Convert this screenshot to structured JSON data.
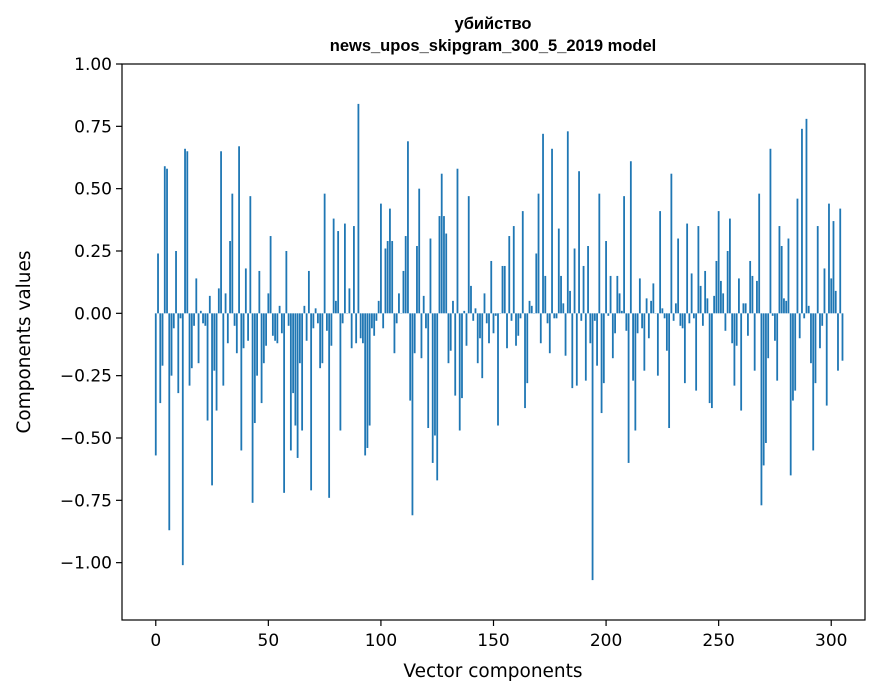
{
  "chart_data": {
    "type": "bar",
    "title": "убийство",
    "subtitle": "news_upos_skipgram_300_5_2019 model",
    "xlabel": "Vector components",
    "ylabel": "Components values",
    "xlim": [
      -15,
      315
    ],
    "ylim": [
      -1.23,
      1.0
    ],
    "xticks": [
      0,
      50,
      100,
      150,
      200,
      250,
      300
    ],
    "xtick_labels": [
      "0",
      "50",
      "100",
      "150",
      "200",
      "250",
      "300"
    ],
    "yticks": [
      1.0,
      0.75,
      0.5,
      0.25,
      0.0,
      -0.25,
      -0.5,
      -0.75,
      -1.0
    ],
    "ytick_labels": [
      "1.00",
      "0.75",
      "0.50",
      "0.25",
      "0.00",
      "−0.25",
      "−0.50",
      "−0.75",
      "−1.00"
    ],
    "grid": false,
    "bar_color": "#1f77b4",
    "values": [
      -0.57,
      0.24,
      -0.36,
      -0.21,
      0.59,
      0.58,
      -0.87,
      -0.25,
      -0.06,
      0.25,
      -0.32,
      -0.02,
      -1.01,
      0.66,
      0.65,
      -0.29,
      -0.22,
      -0.05,
      0.14,
      -0.2,
      0.01,
      -0.04,
      -0.05,
      -0.43,
      0.07,
      -0.69,
      -0.23,
      -0.39,
      0.1,
      0.65,
      -0.29,
      0.08,
      -0.12,
      0.29,
      0.48,
      -0.05,
      -0.16,
      0.67,
      -0.55,
      -0.14,
      0.18,
      -0.11,
      0.47,
      -0.76,
      -0.44,
      -0.25,
      0.17,
      -0.36,
      -0.2,
      -0.13,
      0.08,
      0.31,
      -0.09,
      -0.11,
      -0.12,
      0.03,
      -0.08,
      -0.72,
      0.25,
      -0.05,
      -0.55,
      -0.32,
      -0.45,
      -0.58,
      -0.2,
      -0.47,
      0.03,
      -0.11,
      0.17,
      -0.71,
      -0.06,
      0.02,
      -0.04,
      -0.22,
      -0.2,
      0.48,
      -0.07,
      -0.74,
      -0.13,
      0.38,
      0.05,
      0.33,
      -0.47,
      -0.04,
      0.36,
      0.0,
      0.1,
      -0.14,
      0.35,
      -0.12,
      0.84,
      -0.1,
      -0.12,
      -0.57,
      -0.54,
      -0.45,
      -0.06,
      -0.09,
      -0.03,
      0.05,
      0.44,
      -0.06,
      0.26,
      0.29,
      0.42,
      0.29,
      -0.16,
      -0.04,
      0.08,
      0.0,
      0.17,
      0.31,
      0.69,
      -0.35,
      -0.81,
      -0.16,
      0.27,
      0.5,
      -0.18,
      0.07,
      -0.06,
      -0.46,
      0.3,
      -0.6,
      -0.49,
      -0.67,
      0.39,
      0.56,
      0.39,
      0.32,
      -0.2,
      -0.15,
      0.05,
      -0.33,
      0.58,
      -0.47,
      -0.34,
      0.01,
      -0.13,
      0.47,
      0.11,
      -0.03,
      0.02,
      -0.2,
      -0.1,
      -0.26,
      0.08,
      -0.04,
      -0.12,
      0.21,
      -0.08,
      -0.01,
      -0.45,
      0.0,
      0.19,
      0.19,
      -0.14,
      0.31,
      -0.03,
      0.35,
      -0.13,
      -0.09,
      -0.02,
      0.41,
      -0.38,
      -0.28,
      0.05,
      0.03,
      0.0,
      0.24,
      0.48,
      -0.12,
      0.72,
      0.15,
      -0.04,
      -0.16,
      0.66,
      -0.02,
      -0.02,
      0.34,
      0.15,
      0.04,
      -0.17,
      0.73,
      0.09,
      -0.3,
      0.26,
      -0.29,
      0.57,
      -0.03,
      0.19,
      -0.27,
      0.27,
      -0.12,
      -1.07,
      -0.03,
      -0.21,
      0.48,
      -0.4,
      -0.28,
      0.29,
      -0.01,
      0.15,
      -0.18,
      -0.08,
      0.15,
      0.08,
      0.01,
      0.47,
      -0.07,
      -0.6,
      0.61,
      -0.27,
      -0.47,
      -0.08,
      0.14,
      -0.06,
      -0.23,
      0.06,
      -0.1,
      0.05,
      0.12,
      0.0,
      -0.25,
      0.41,
      0.02,
      -0.02,
      -0.15,
      -0.46,
      0.56,
      -0.03,
      0.04,
      0.3,
      -0.05,
      -0.06,
      -0.28,
      0.36,
      -0.04,
      0.16,
      -0.02,
      -0.31,
      0.35,
      0.11,
      -0.05,
      0.17,
      0.06,
      -0.36,
      -0.38,
      0.07,
      0.21,
      0.41,
      0.13,
      0.08,
      -0.07,
      0.25,
      0.38,
      -0.12,
      -0.29,
      -0.13,
      0.14,
      -0.39,
      0.04,
      0.04,
      -0.09,
      0.21,
      0.15,
      -0.23,
      0.13,
      0.48,
      -0.77,
      -0.61,
      -0.52,
      -0.18,
      0.66,
      -0.01,
      -0.11,
      -0.27,
      0.35,
      0.27,
      0.06,
      0.05,
      0.3,
      -0.65,
      -0.35,
      -0.31,
      0.46,
      -0.1,
      0.74,
      -0.02,
      0.78,
      0.03,
      -0.2,
      -0.55,
      -0.28,
      0.35,
      -0.14,
      -0.05,
      0.18,
      -0.37,
      0.44,
      0.14,
      0.37,
      0.09,
      -0.23,
      0.42,
      -0.19
    ]
  }
}
